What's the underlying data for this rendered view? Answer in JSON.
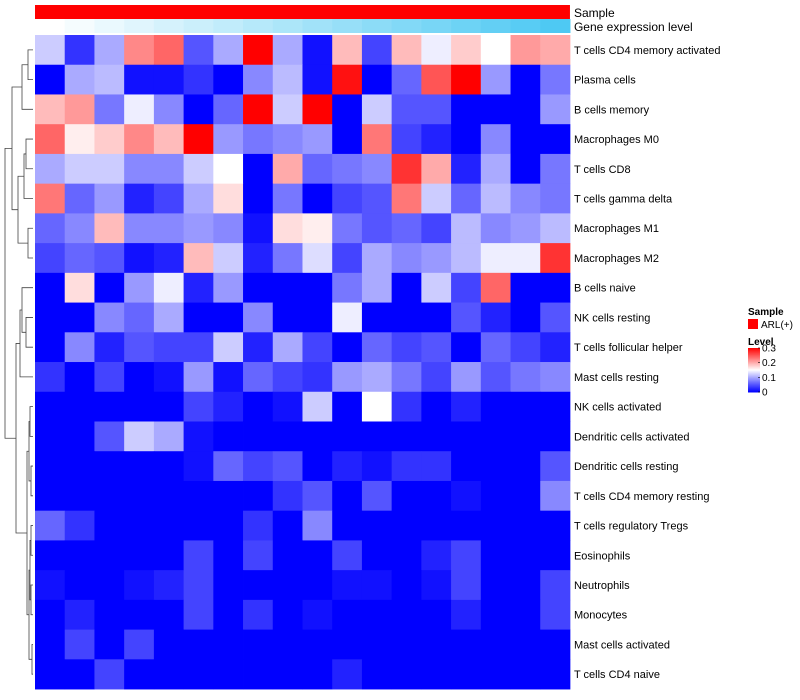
{
  "chart_data": {
    "type": "heatmap",
    "annotation_tracks": [
      {
        "label": "Sample",
        "color": "#FF0000"
      },
      {
        "label": "Gene expression level",
        "gradient": [
          "#FFFFFF",
          "#4EC9F3"
        ]
      }
    ],
    "rows": [
      "T cells CD4 memory activated",
      "Plasma cells",
      "B cells memory",
      "Macrophages M0",
      "T cells CD8",
      "T cells gamma delta",
      "Macrophages M1",
      "Macrophages M2",
      "B cells naive",
      "NK cells resting",
      "T cells follicular helper",
      "Mast cells resting",
      "NK cells activated",
      "Dendritic cells activated",
      "Dendritic cells resting",
      "T cells CD4 memory resting",
      "T cells regulatory  Tregs",
      "Eosinophils",
      "Neutrophils",
      "Monocytes",
      "Mast cells activated",
      "T cells CD4 naive"
    ],
    "n_columns": 18,
    "values": [
      [
        0.12,
        0.03,
        0.1,
        0.22,
        0.24,
        0.05,
        0.1,
        0.3,
        0.1,
        0.01,
        0.19,
        0.04,
        0.19,
        0.14,
        0.18,
        0.15,
        0.21,
        0.2
      ],
      [
        0.0,
        0.1,
        0.11,
        0.01,
        0.01,
        0.03,
        0.0,
        0.08,
        0.11,
        0.01,
        0.29,
        0.0,
        0.06,
        0.25,
        0.3,
        0.09,
        0.0,
        0.07
      ],
      [
        0.19,
        0.21,
        0.07,
        0.14,
        0.08,
        0.0,
        0.06,
        0.3,
        0.12,
        0.3,
        0.0,
        0.12,
        0.05,
        0.05,
        0.0,
        0.0,
        0.0,
        0.09
      ],
      [
        0.24,
        0.16,
        0.18,
        0.22,
        0.19,
        0.3,
        0.09,
        0.07,
        0.08,
        0.09,
        0.0,
        0.23,
        0.04,
        0.02,
        0.0,
        0.08,
        0.0,
        0.0
      ],
      [
        0.1,
        0.12,
        0.12,
        0.08,
        0.08,
        0.12,
        0.15,
        0.0,
        0.2,
        0.06,
        0.07,
        0.08,
        0.27,
        0.2,
        0.02,
        0.1,
        0.0,
        0.07
      ],
      [
        0.23,
        0.06,
        0.09,
        0.02,
        0.04,
        0.1,
        0.17,
        0.0,
        0.07,
        0.0,
        0.04,
        0.05,
        0.23,
        0.12,
        0.06,
        0.11,
        0.08,
        0.07
      ],
      [
        0.06,
        0.08,
        0.19,
        0.08,
        0.08,
        0.09,
        0.08,
        0.01,
        0.17,
        0.16,
        0.07,
        0.05,
        0.06,
        0.04,
        0.11,
        0.08,
        0.09,
        0.11
      ],
      [
        0.04,
        0.06,
        0.05,
        0.01,
        0.02,
        0.19,
        0.12,
        0.02,
        0.07,
        0.13,
        0.04,
        0.1,
        0.08,
        0.09,
        0.11,
        0.14,
        0.14,
        0.27
      ],
      [
        0.0,
        0.17,
        0.0,
        0.09,
        0.14,
        0.02,
        0.09,
        0.0,
        0.0,
        0.0,
        0.07,
        0.1,
        0.0,
        0.12,
        0.04,
        0.24,
        0.0,
        0.0
      ],
      [
        0.0,
        0.0,
        0.08,
        0.06,
        0.1,
        0.0,
        0.0,
        0.08,
        0.0,
        0.0,
        0.14,
        0.0,
        0.0,
        0.0,
        0.05,
        0.02,
        0.0,
        0.05
      ],
      [
        0.0,
        0.08,
        0.02,
        0.05,
        0.04,
        0.04,
        0.12,
        0.02,
        0.1,
        0.04,
        0.0,
        0.06,
        0.04,
        0.05,
        0.0,
        0.06,
        0.04,
        0.02
      ],
      [
        0.03,
        0.0,
        0.04,
        0.0,
        0.01,
        0.09,
        0.01,
        0.06,
        0.04,
        0.03,
        0.09,
        0.1,
        0.07,
        0.04,
        0.09,
        0.05,
        0.07,
        0.08
      ],
      [
        0.0,
        0.0,
        0.0,
        0.0,
        0.0,
        0.04,
        0.02,
        0.0,
        0.01,
        0.12,
        0.0,
        0.15,
        0.03,
        0.0,
        0.02,
        0.0,
        0.0,
        0.0
      ],
      [
        0.0,
        0.0,
        0.05,
        0.12,
        0.1,
        0.01,
        0.0,
        0.0,
        0.0,
        0.0,
        0.0,
        0.0,
        0.0,
        0.0,
        0.0,
        0.0,
        0.0,
        0.0
      ],
      [
        0.0,
        0.0,
        0.0,
        0.0,
        0.0,
        0.01,
        0.06,
        0.04,
        0.05,
        0.0,
        0.02,
        0.01,
        0.03,
        0.03,
        0.0,
        0.0,
        0.0,
        0.05
      ],
      [
        0.0,
        0.0,
        0.0,
        0.0,
        0.0,
        0.0,
        0.0,
        0.0,
        0.03,
        0.05,
        0.0,
        0.05,
        0.0,
        0.0,
        0.01,
        0.0,
        0.0,
        0.08
      ],
      [
        0.06,
        0.03,
        0.0,
        0.0,
        0.0,
        0.0,
        0.0,
        0.03,
        0.0,
        0.08,
        0.0,
        0.0,
        0.0,
        0.0,
        0.0,
        0.0,
        0.0,
        0.0
      ],
      [
        0.0,
        0.0,
        0.0,
        0.0,
        0.0,
        0.04,
        0.0,
        0.04,
        0.0,
        0.0,
        0.04,
        0.0,
        0.0,
        0.02,
        0.04,
        0.0,
        0.0,
        0.0
      ],
      [
        0.01,
        0.0,
        0.0,
        0.01,
        0.02,
        0.04,
        0.0,
        0.0,
        0.0,
        0.0,
        0.01,
        0.01,
        0.0,
        0.01,
        0.04,
        0.0,
        0.0,
        0.04
      ],
      [
        0.0,
        0.02,
        0.0,
        0.0,
        0.0,
        0.04,
        0.0,
        0.03,
        0.0,
        0.01,
        0.0,
        0.0,
        0.0,
        0.0,
        0.02,
        0.0,
        0.0,
        0.04
      ],
      [
        0.0,
        0.04,
        0.0,
        0.04,
        0.0,
        0.0,
        0.0,
        0.0,
        0.0,
        0.0,
        0.0,
        0.0,
        0.0,
        0.0,
        0.0,
        0.0,
        0.0,
        0.0
      ],
      [
        0.0,
        0.0,
        0.04,
        0.0,
        0.0,
        0.0,
        0.0,
        0.0,
        0.0,
        0.0,
        0.02,
        0.0,
        0.0,
        0.0,
        0.0,
        0.0,
        0.0,
        0.0
      ]
    ],
    "color_scale": {
      "min": 0,
      "mid": 0.15,
      "max": 0.3,
      "colors": [
        "#0000FF",
        "#FFFFFF",
        "#FF0000"
      ]
    },
    "legend": {
      "sample_title": "Sample",
      "sample_items": [
        {
          "label": "ARL(+)",
          "color": "#FF0000"
        }
      ],
      "level_title": "Level",
      "level_ticks": [
        {
          "value": 0.3,
          "label": "0.3"
        },
        {
          "value": 0.2,
          "label": "0.2"
        },
        {
          "value": 0.1,
          "label": "0.1"
        },
        {
          "value": 0,
          "label": "0"
        }
      ],
      "placement": "right"
    },
    "row_dendrogram": "left"
  }
}
